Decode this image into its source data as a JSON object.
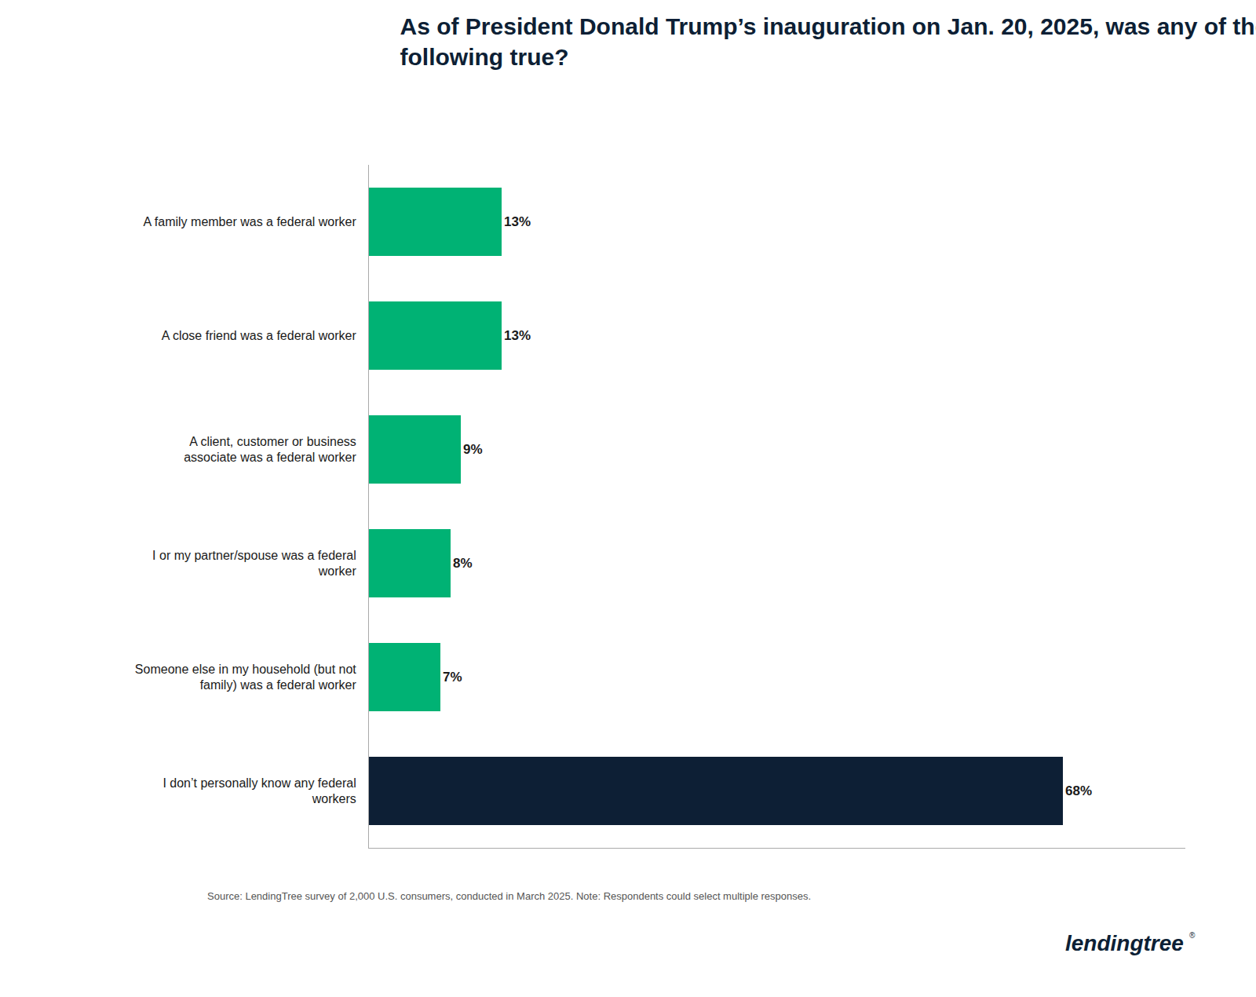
{
  "chart_data": {
    "type": "bar",
    "orientation": "horizontal",
    "title": "As of President Donald Trump’s inauguration on Jan. 20, 2025, was any of the\nfollowing true?",
    "categories": [
      "A family member was a federal worker",
      "A close friend was a federal worker",
      "A client, customer or business\nassociate was a federal worker",
      "I or my partner/spouse was a federal\nworker",
      "Someone else in my household (but not\nfamily) was a federal worker",
      "I don’t personally know any federal\nworkers"
    ],
    "values": [
      13,
      13,
      9,
      8,
      7,
      68
    ],
    "value_labels": [
      "13%",
      "13%",
      "9%",
      "8%",
      "7%",
      "68%"
    ],
    "data_labels": true,
    "colors": [
      "#00b274",
      "#00b274",
      "#00b274",
      "#00b274",
      "#00b274",
      "#0d1f35"
    ],
    "xlim": [
      0,
      80
    ],
    "grid": false,
    "tick_labels": "y",
    "annotations": [
      "Source: LendingTree survey of 2,000 U.S. consumers, conducted in March 2025. Note: Respondents could select multiple responses.",
      "lendingtree",
      "®"
    ]
  }
}
